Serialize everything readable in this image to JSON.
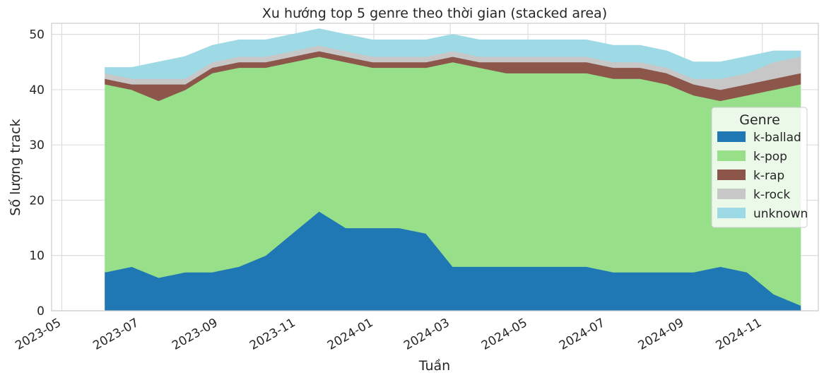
{
  "chart_data": {
    "type": "area",
    "stacked": true,
    "title": "Xu hướng top 5 genre theo thời gian (stacked area)",
    "xlabel": "Tuần",
    "ylabel": "Số lượng track",
    "x_range": [
      "2023-04-23",
      "2024-12-15"
    ],
    "ylim": [
      0,
      52
    ],
    "y_ticks": [
      0,
      10,
      20,
      30,
      40,
      50
    ],
    "x_ticks": [
      "2023-05",
      "2023-07",
      "2023-09",
      "2023-11",
      "2024-01",
      "2024-03",
      "2024-05",
      "2024-07",
      "2024-09",
      "2024-11"
    ],
    "grid": true,
    "legend": {
      "title": "Genre",
      "placement": "right"
    },
    "x": [
      "2023-06-04",
      "2023-06-25",
      "2023-07-16",
      "2023-08-06",
      "2023-08-27",
      "2023-09-17",
      "2023-10-08",
      "2023-10-29",
      "2023-11-19",
      "2023-12-10",
      "2023-12-31",
      "2024-01-21",
      "2024-02-11",
      "2024-03-03",
      "2024-03-24",
      "2024-04-14",
      "2024-05-05",
      "2024-05-26",
      "2024-06-16",
      "2024-07-07",
      "2024-07-28",
      "2024-08-18",
      "2024-09-08",
      "2024-09-29",
      "2024-10-20",
      "2024-11-10",
      "2024-12-01"
    ],
    "series": [
      {
        "name": "k-ballad",
        "color": "#1f77b4",
        "values": [
          7,
          8,
          6,
          7,
          7,
          8,
          10,
          14,
          18,
          15,
          15,
          15,
          14,
          8,
          8,
          8,
          8,
          8,
          8,
          7,
          7,
          7,
          7,
          8,
          7,
          3,
          1
        ]
      },
      {
        "name": "k-pop",
        "color": "#98df8a",
        "values": [
          34,
          32,
          32,
          33,
          36,
          36,
          34,
          31,
          28,
          30,
          29,
          29,
          30,
          37,
          36,
          35,
          35,
          35,
          35,
          35,
          35,
          34,
          32,
          30,
          32,
          37,
          40
        ]
      },
      {
        "name": "k-rap",
        "color": "#8c564b",
        "values": [
          1,
          1,
          3,
          1,
          1,
          1,
          1,
          1,
          1,
          1,
          1,
          1,
          1,
          1,
          1,
          2,
          2,
          2,
          2,
          2,
          2,
          2,
          2,
          2,
          2,
          2,
          2
        ]
      },
      {
        "name": "k-rock",
        "color": "#c7c7c7",
        "values": [
          1,
          1,
          1,
          1,
          1,
          1,
          1,
          1,
          1,
          1,
          1,
          1,
          1,
          1,
          1,
          1,
          1,
          1,
          1,
          1,
          1,
          1,
          1,
          2,
          2,
          3,
          3
        ]
      },
      {
        "name": "unknown",
        "color": "#9edae5",
        "values": [
          1,
          2,
          3,
          4,
          3,
          3,
          3,
          3,
          3,
          3,
          3,
          3,
          3,
          3,
          3,
          3,
          3,
          3,
          3,
          3,
          3,
          3,
          3,
          3,
          3,
          2,
          1
        ]
      }
    ]
  }
}
